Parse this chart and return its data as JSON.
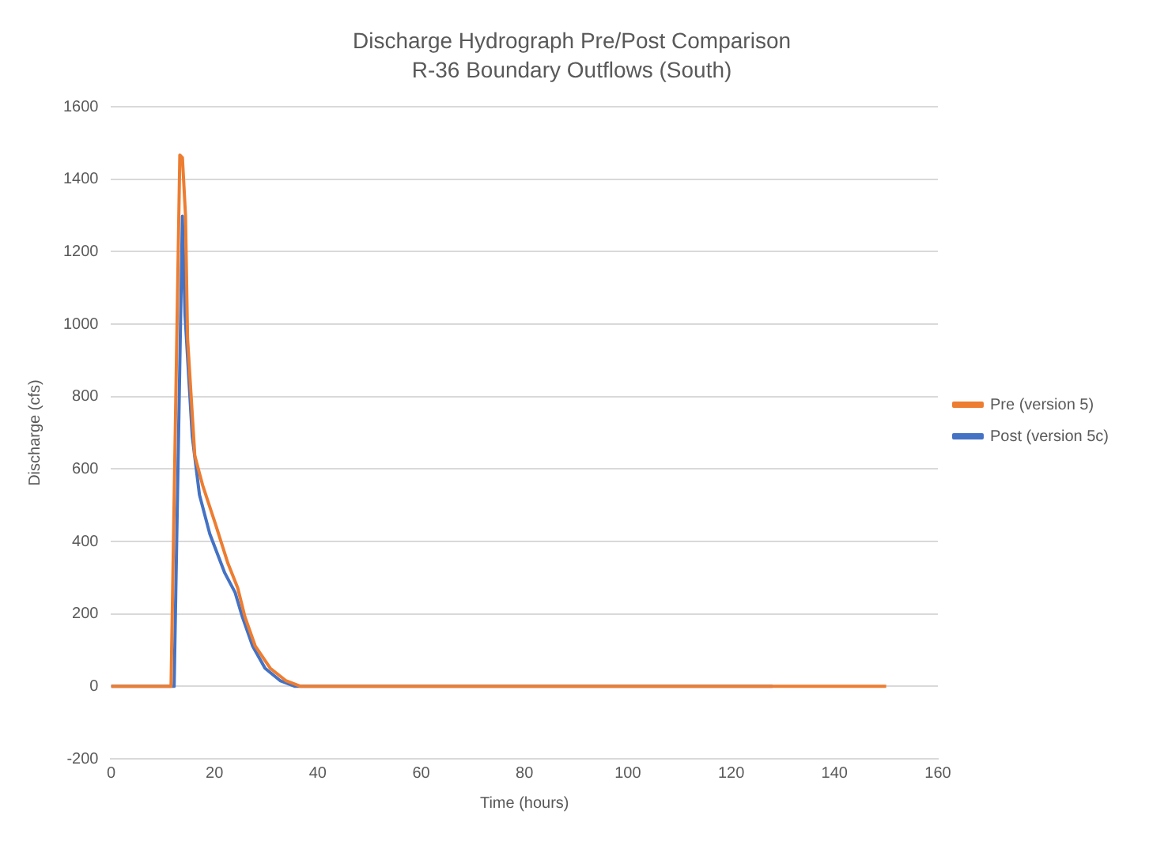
{
  "chart_data": {
    "type": "line",
    "title": "Discharge Hydrograph Pre/Post Comparison",
    "subtitle": "R-36 Boundary Outflows (South)",
    "xlabel": "Time (hours)",
    "ylabel": "Discharge (cfs)",
    "xlim": [
      0,
      160
    ],
    "xticks": [
      0,
      20,
      40,
      60,
      80,
      100,
      120,
      140,
      160
    ],
    "ylim": [
      -200,
      1600
    ],
    "yticks": [
      -200,
      0,
      200,
      400,
      600,
      800,
      1000,
      1200,
      1400,
      1600
    ],
    "grid": "y",
    "legend": "right",
    "marker": "none",
    "line_style": "solid",
    "series": [
      {
        "name": "Pre (version 5)",
        "color": "#ed7d31",
        "x": [
          0,
          11.6,
          13.3,
          13.8,
          14.4,
          14.8,
          16.2,
          17.7,
          20.2,
          22.6,
          24.5,
          25.9,
          27.9,
          30.8,
          33.8,
          36.7,
          150
        ],
        "values": [
          0,
          0,
          1467,
          1460,
          1300,
          960,
          637,
          556,
          448,
          340,
          272,
          192,
          111,
          50,
          16,
          0,
          0
        ]
      },
      {
        "name": "Post (version 5c)",
        "color": "#4472c4",
        "x": [
          0,
          12.2,
          13.8,
          14.3,
          15.7,
          17.1,
          19.1,
          22.0,
          24.0,
          25.4,
          27.4,
          29.8,
          32.7,
          35.6,
          128
        ],
        "values": [
          0,
          0,
          1298,
          1028,
          691,
          529,
          421,
          313,
          259,
          192,
          111,
          50,
          16,
          0,
          0
        ]
      }
    ]
  }
}
